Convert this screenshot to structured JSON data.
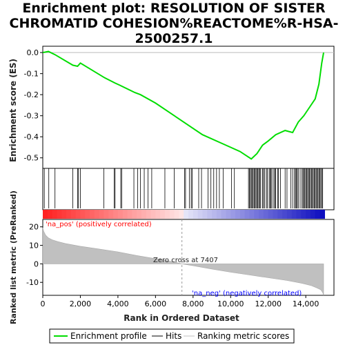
{
  "chart_data": {
    "type": "line",
    "title_lines": [
      "Enrichment plot: RESOLUTION OF SISTER",
      "CHROMATID COHESION%REACTOME%R-HSA-",
      "2500257.1"
    ],
    "top_panel": {
      "ylabel": "Enrichment score (ES)",
      "ylim": [
        -0.55,
        0.03
      ],
      "yticks": [
        0.0,
        -0.1,
        -0.2,
        -0.3,
        -0.4,
        -0.5
      ],
      "ytick_labels": [
        "0.0",
        "-0.1",
        "-0.2",
        "-0.3",
        "-0.4",
        "-0.5"
      ],
      "series": [
        {
          "name": "Enrichment profile",
          "color": "#00dd00",
          "x": [
            0,
            300,
            650,
            1600,
            1850,
            2000,
            3300,
            3850,
            4100,
            4900,
            5200,
            6000,
            7000,
            8500,
            9500,
            10000,
            10500,
            11100,
            11400,
            11700,
            12000,
            12400,
            12900,
            13300,
            13600,
            13900,
            14200,
            14500,
            14700,
            14850,
            14950
          ],
          "y": [
            0.0,
            0.005,
            -0.01,
            -0.06,
            -0.065,
            -0.05,
            -0.12,
            -0.145,
            -0.155,
            -0.19,
            -0.2,
            -0.24,
            -0.3,
            -0.39,
            -0.43,
            -0.45,
            -0.47,
            -0.505,
            -0.48,
            -0.44,
            -0.42,
            -0.39,
            -0.37,
            -0.38,
            -0.33,
            -0.3,
            -0.26,
            -0.22,
            -0.15,
            -0.05,
            0.0
          ]
        }
      ]
    },
    "hits": [
      80,
      320,
      650,
      1600,
      1850,
      1900,
      2000,
      3250,
      3800,
      3850,
      4150,
      4200,
      4850,
      5050,
      5200,
      5400,
      5600,
      5800,
      6500,
      7000,
      7550,
      7600,
      7800,
      7900,
      7950,
      8300,
      8450,
      8800,
      8950,
      9100,
      9250,
      9400,
      9600,
      10050,
      10200,
      10950,
      11000,
      11050,
      11100,
      11150,
      11200,
      11250,
      11300,
      11350,
      11400,
      11450,
      11500,
      11550,
      11600,
      11700,
      11750,
      11800,
      11900,
      11950,
      12050,
      12100,
      12150,
      12200,
      12300,
      12350,
      12400,
      12500,
      12550,
      12650,
      12900,
      13000,
      13200,
      13300,
      13400,
      13450,
      13500,
      13550,
      13600,
      13700,
      13800,
      13850,
      13900,
      13950,
      14000,
      14050,
      14100,
      14150,
      14200,
      14250,
      14300,
      14350,
      14400,
      14450,
      14500,
      14550,
      14600,
      14650,
      14700,
      14750,
      14800,
      14850,
      14900
    ],
    "bottom_panel": {
      "ylabel": "Ranked list metric (PreRanked)",
      "ylim": [
        -17,
        24
      ],
      "yticks": [
        20,
        10,
        0,
        -10
      ],
      "ytick_labels": [
        "20",
        "10",
        "0",
        "-10"
      ],
      "series": [
        {
          "name": "Ranking metric scores",
          "color": "#c0c0c0",
          "x": [
            0,
            50,
            150,
            300,
            500,
            800,
            1200,
            2000,
            3000,
            4000,
            5000,
            6000,
            7000,
            7407,
            8000,
            9000,
            10000,
            11000,
            12000,
            13000,
            13800,
            14300,
            14600,
            14800,
            14900,
            14950
          ],
          "y": [
            19.5,
            17.5,
            15.5,
            14.0,
            13.0,
            12.0,
            11.0,
            9.5,
            8.0,
            6.5,
            4.5,
            2.8,
            1.0,
            0.0,
            -1.0,
            -2.8,
            -4.5,
            -6.0,
            -7.5,
            -9.0,
            -10.5,
            -11.8,
            -13.0,
            -14.0,
            -15.5,
            -17.0
          ]
        }
      ],
      "annotations": {
        "pos_label": "'na_pos' (positively correlated)",
        "neg_label": "'na_neg' (negatively correlated)",
        "zero_cross": "Zero cross at 7407",
        "zero_cross_x": 7407,
        "pos_color": "#ff0000",
        "neg_color": "#0000ff"
      }
    },
    "xlabel": "Rank in Ordered Dataset",
    "xlim": [
      0,
      15500
    ],
    "xticks": [
      0,
      2000,
      4000,
      6000,
      8000,
      10000,
      12000,
      14000
    ],
    "xtick_labels": [
      "0",
      "2,000",
      "4,000",
      "6,000",
      "8,000",
      "10,000",
      "12,000",
      "14,000"
    ],
    "n_genes": 15000,
    "legend": {
      "placement": "bottom",
      "entries": [
        {
          "label": "Enrichment profile",
          "color": "#00dd00"
        },
        {
          "label": "Hits",
          "color": "#000000"
        },
        {
          "label": "Ranking metric scores",
          "color": "#c0c0c0"
        }
      ]
    }
  }
}
